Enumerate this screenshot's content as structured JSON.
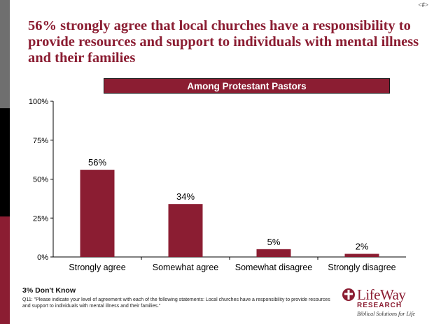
{
  "slide_number": "<#>",
  "title": "56% strongly agree that local churches have a responsibility to provide resources and support to individuals with mental illness and their families",
  "chart_data": {
    "type": "bar",
    "subtitle": "Among Protestant Pastors",
    "categories": [
      "Strongly agree",
      "Somewhat agree",
      "Somewhat disagree",
      "Strongly disagree"
    ],
    "values": [
      56,
      34,
      5,
      2
    ],
    "value_labels": [
      "56%",
      "34%",
      "5%",
      "2%"
    ],
    "ylim": [
      0,
      100
    ],
    "yticks": [
      "0%",
      "25%",
      "50%",
      "75%",
      "100%"
    ],
    "xlabel": "",
    "ylabel": "",
    "grid": false,
    "bar_color": "#8b1d32"
  },
  "footnote": {
    "dont_know": "3% Don't Know",
    "question": "Q11: \"Please indicate your level of agreement with each of the following statements: Local churches have a responsibility to provide resources and support to individuals with mental illness and their families.\""
  },
  "logo": {
    "name": "LifeWay",
    "sub": "RESEARCH",
    "tagline": "Biblical Solutions for Life"
  },
  "colors": {
    "accent": "#8b1d32",
    "band_gray": "#6f6f6f",
    "band_black": "#000000"
  }
}
